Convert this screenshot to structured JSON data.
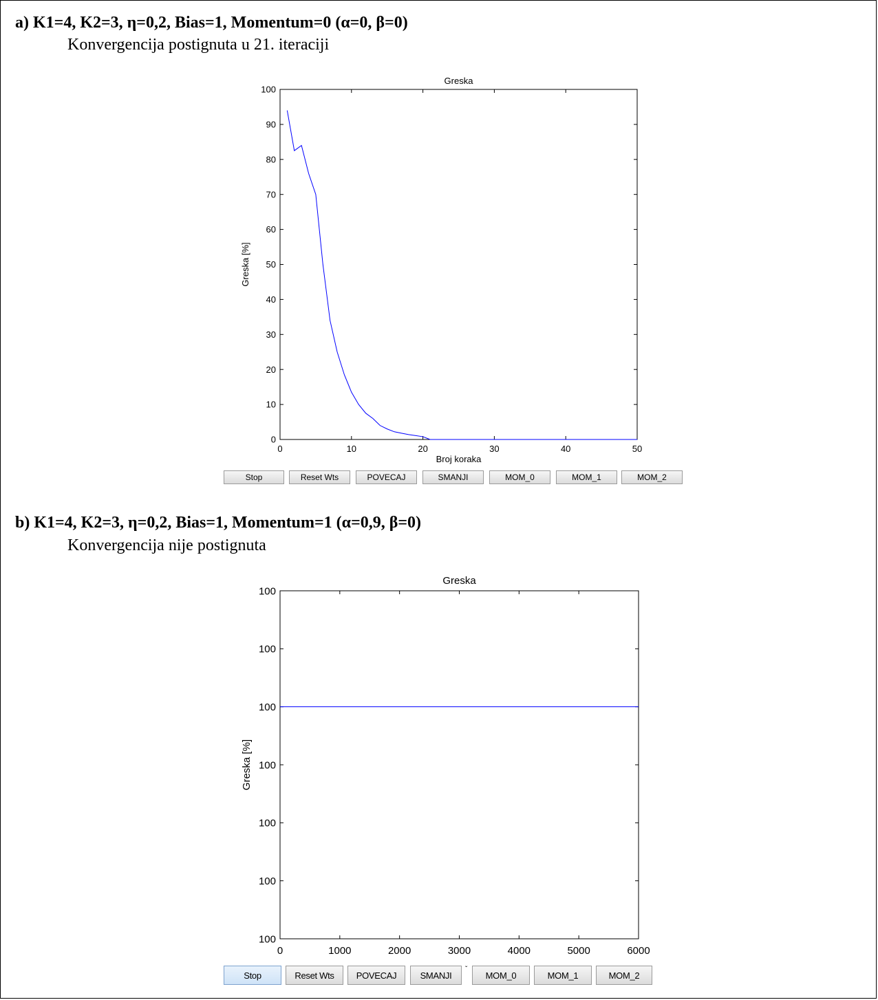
{
  "sections": [
    {
      "heading": "a) K1=4, K2=3, η=0,2, Bias=1, Momentum=0 (α=0, β=0)",
      "subheading": "Konvergencija postignuta u 21. iteraciji",
      "buttons": [
        "Stop",
        "Reset Wts",
        "POVECAJ",
        "SMANJI",
        "MOM_0",
        "MOM_1",
        "MOM_2"
      ]
    },
    {
      "heading": "b) K1=4, K2=3, η=0,2, Bias=1, Momentum=1 (α=0,9, β=0)",
      "subheading": "Konvergencija nije postignuta",
      "buttons": [
        "Stop",
        "Reset Wts",
        "POVECAJ",
        "SMANJI",
        "MOM_0",
        "MOM_1",
        "MOM_2"
      ],
      "stray_mark": "ˇ"
    }
  ],
  "chart_data": [
    {
      "type": "line",
      "title": "Greska",
      "xlabel": "Broj koraka",
      "ylabel": "Greska [%]",
      "xlim": [
        0,
        50
      ],
      "ylim": [
        0,
        100
      ],
      "xticks": [
        0,
        10,
        20,
        30,
        40,
        50
      ],
      "yticks": [
        0,
        10,
        20,
        30,
        40,
        50,
        60,
        70,
        80,
        90,
        100
      ],
      "grid": false,
      "line_color": "#0000ff",
      "series": [
        {
          "x": [
            1,
            2,
            3,
            4,
            5,
            6,
            7,
            8,
            9,
            10,
            11,
            12,
            13,
            14,
            15,
            16,
            17,
            18,
            19,
            20,
            21,
            22,
            50
          ],
          "values": [
            94,
            82.5,
            84,
            76,
            70,
            50,
            34,
            25,
            18.5,
            13.5,
            10,
            7.5,
            6,
            4,
            3,
            2.2,
            1.8,
            1.4,
            1.1,
            0.8,
            0,
            0,
            0
          ]
        }
      ]
    },
    {
      "type": "line",
      "title": "Greska",
      "xlabel": "",
      "ylabel": "Greska [%]",
      "xlim": [
        0,
        6000
      ],
      "xticks": [
        0,
        1000,
        2000,
        3000,
        4000,
        5000,
        6000
      ],
      "ytick_labels": [
        "100",
        "100",
        "100",
        "100",
        "100",
        "100",
        "100"
      ],
      "grid": false,
      "line_color": "#0000ff",
      "series": [
        {
          "x": [
            0,
            6000
          ],
          "values": [
            100,
            100
          ]
        }
      ]
    }
  ]
}
